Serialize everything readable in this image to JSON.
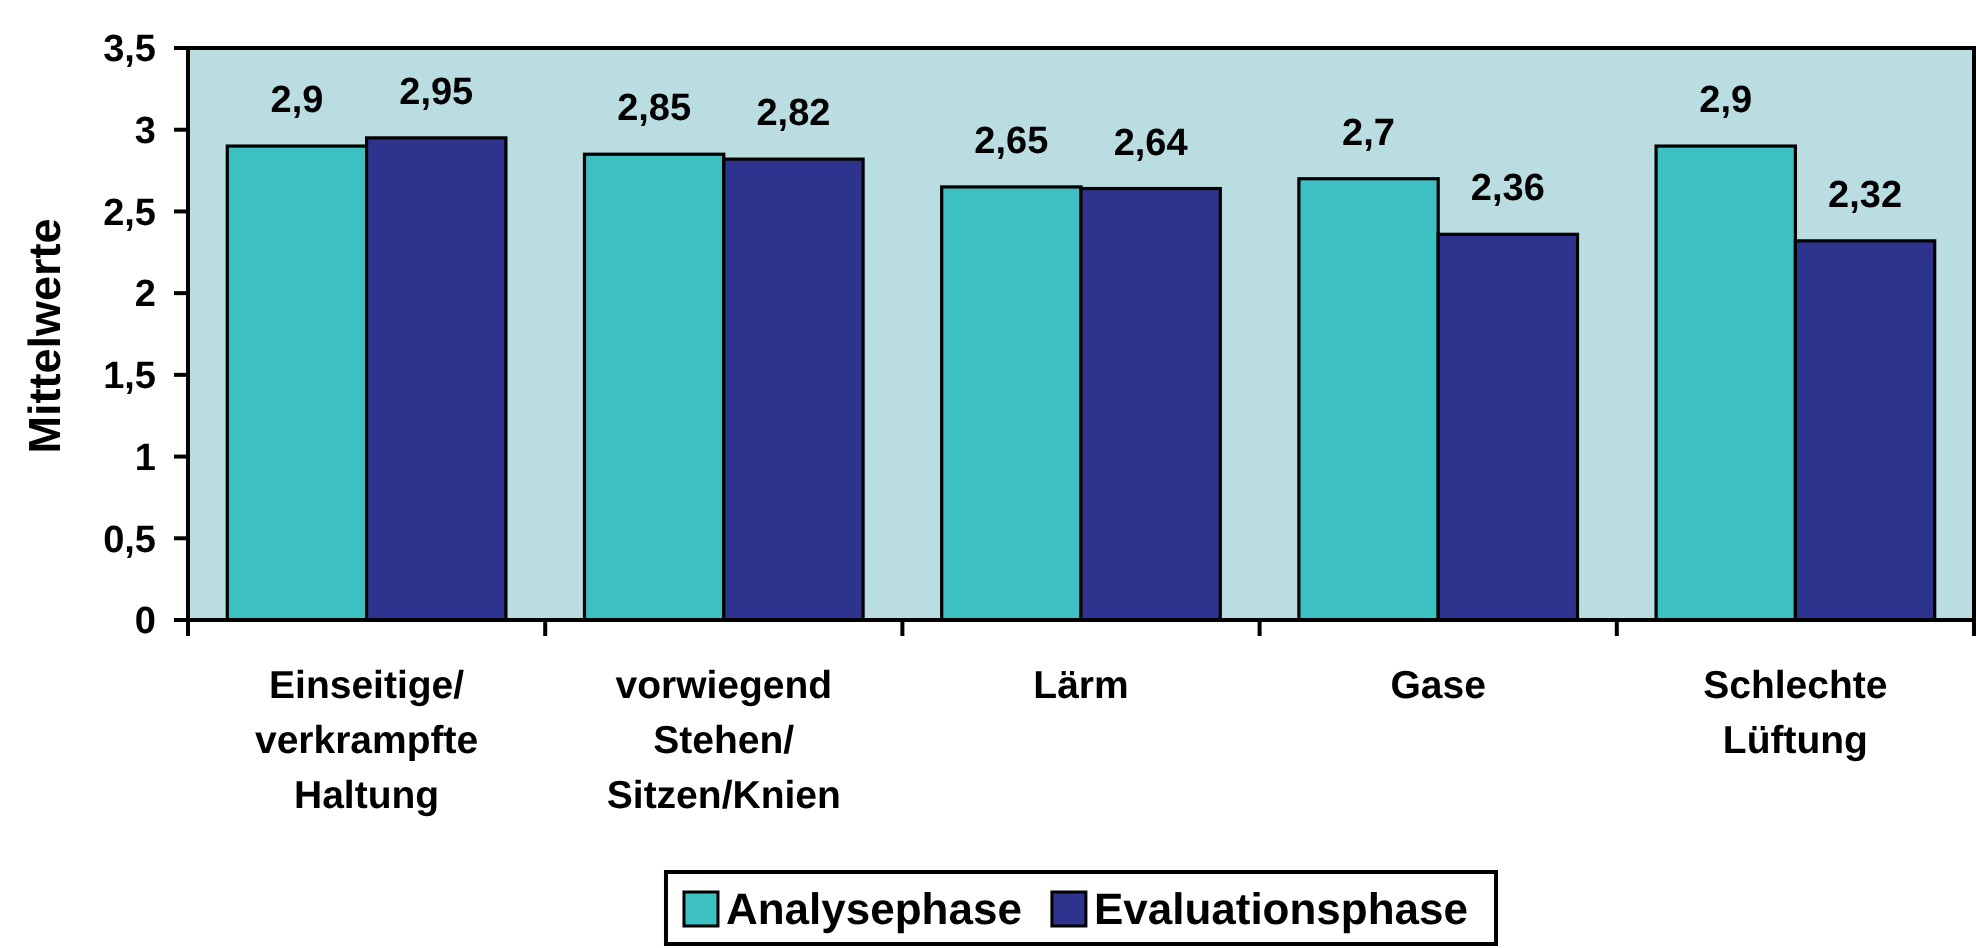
{
  "chart_data": {
    "type": "bar",
    "ylabel": "Mittelwerte",
    "categories": [
      "Einseitige/\nverkrampfte\nHaltung",
      "vorwiegend\nStehen/\nSitzen/Knien",
      "Lärm",
      "Gase",
      "Schlechte\nLüftung"
    ],
    "series": [
      {
        "name": "Analysephase",
        "color": "#3dc0c2",
        "values": [
          2.9,
          2.85,
          2.65,
          2.7,
          2.9
        ],
        "value_labels": [
          "2,9",
          "2,85",
          "2,65",
          "2,7",
          "2,9"
        ]
      },
      {
        "name": "Evaluationsphase",
        "color": "#2e348e",
        "values": [
          2.95,
          2.82,
          2.64,
          2.36,
          2.32
        ],
        "value_labels": [
          "2,95",
          "2,82",
          "2,64",
          "2,36",
          "2,32"
        ]
      }
    ],
    "ylim": [
      0,
      3.5
    ],
    "yticks": [
      0,
      {
        "value": 0.5,
        "label": "0,5"
      },
      1,
      {
        "value": 1.5,
        "label": "1,5"
      },
      2,
      {
        "value": 2.5,
        "label": "2,5"
      },
      3,
      {
        "value": 3.5,
        "label": "3,5"
      }
    ],
    "legend": "bottom"
  }
}
